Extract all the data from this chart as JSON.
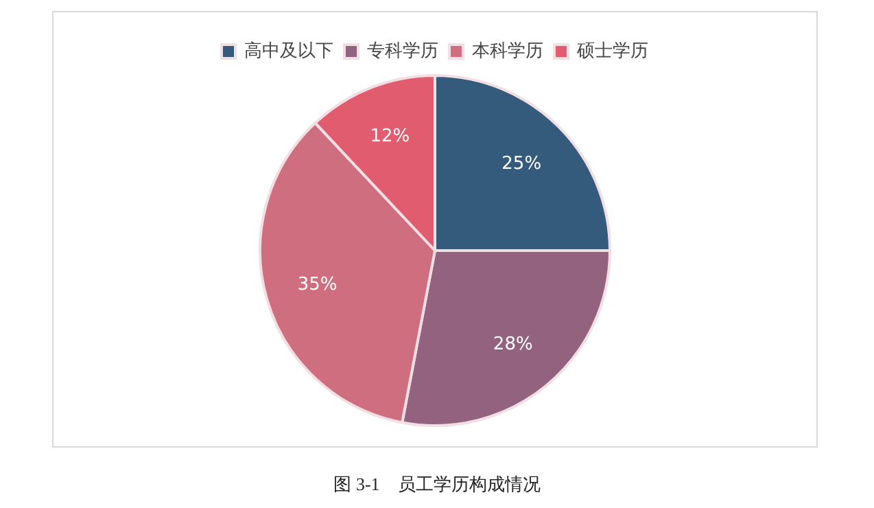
{
  "chart_data": {
    "type": "pie",
    "categories": [
      "高中及以下",
      "专科学历",
      "本科学历",
      "硕士学历"
    ],
    "values": [
      25,
      28,
      35,
      12
    ],
    "colors": [
      "#345a7c",
      "#93627e",
      "#cf6e7e",
      "#e05c6e"
    ],
    "value_labels": [
      "25%",
      "28%",
      "35%",
      "12%"
    ],
    "legend": "top",
    "annotations": [
      "图 3-1    员工学历构成情况"
    ]
  }
}
